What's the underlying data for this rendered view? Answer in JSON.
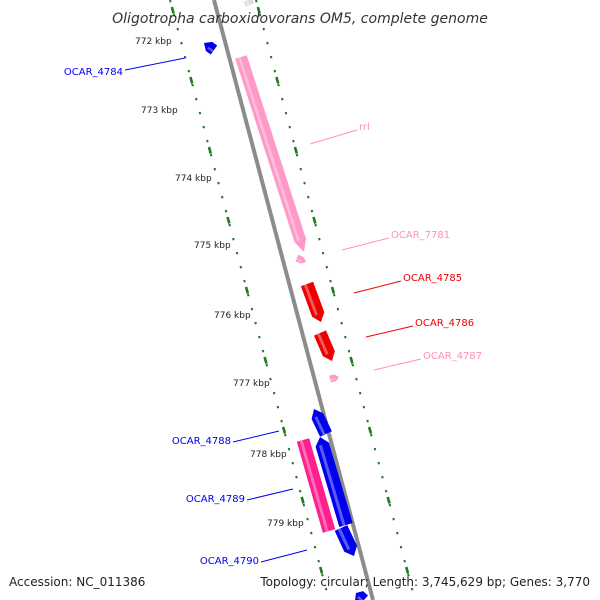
{
  "title": "Oligotropha carboxidovorans OM5, complete genome",
  "footer": {
    "accession": "Accession: NC_011386",
    "stats": "Topology: circular; Length: 3,745,629 bp; Genes: 3,770"
  },
  "colors": {
    "backbone": "#8c8c8c",
    "ruler": "#1f7a1f",
    "forward_gene": "#0000ee",
    "reverse_gene": "#ee0000",
    "rrna": "#ff8fbf",
    "trna": "#ff66aa",
    "ncrna": "#ff1f8f"
  },
  "ruler_ticks": [
    {
      "label": "772 kbp"
    },
    {
      "label": "773 kbp"
    },
    {
      "label": "774 kbp"
    },
    {
      "label": "775 kbp"
    },
    {
      "label": "776 kbp"
    },
    {
      "label": "777 kbp"
    },
    {
      "label": "778 kbp"
    },
    {
      "label": "779 kbp"
    }
  ],
  "genes": [
    {
      "label": "OCAR_4784",
      "type": "forward",
      "color": "#0000ee"
    },
    {
      "label": "rrl",
      "type": "rrna",
      "color": "#ff99c8"
    },
    {
      "label": "OCAR_7781",
      "type": "rrna",
      "color": "#ff99c8"
    },
    {
      "label": "OCAR_4785",
      "type": "reverse",
      "color": "#ee0000"
    },
    {
      "label": "OCAR_4786",
      "type": "reverse",
      "color": "#ee0000"
    },
    {
      "label": "OCAR_4787",
      "type": "rrna",
      "color": "#ff99c8"
    },
    {
      "label": "OCAR_4788",
      "type": "forward",
      "color": "#0000ee"
    },
    {
      "label": "OCAR_4789",
      "type": "forward",
      "color": "#0000ee"
    },
    {
      "label": "OCAR_4790",
      "type": "forward",
      "color": "#0000ee"
    }
  ]
}
